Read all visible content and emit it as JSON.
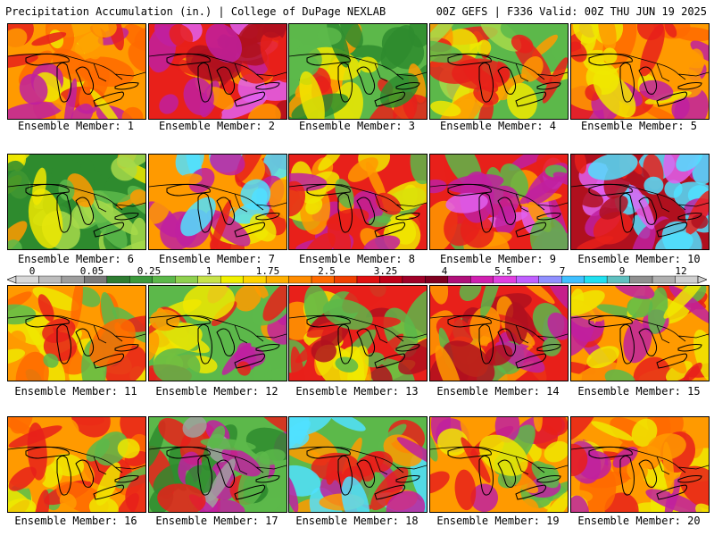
{
  "header": {
    "left_title": "Precipitation Accumulation (in.) | College of DuPage NEXLAB",
    "right_title": "00Z GEFS | F336 Valid: 00Z THU JUN 19 2025"
  },
  "member_label_prefix": "Ensemble Member: ",
  "members": [
    {
      "id": 1,
      "label": "Ensemble Member: 1"
    },
    {
      "id": 2,
      "label": "Ensemble Member: 2"
    },
    {
      "id": 3,
      "label": "Ensemble Member: 3"
    },
    {
      "id": 4,
      "label": "Ensemble Member: 4"
    },
    {
      "id": 5,
      "label": "Ensemble Member: 5"
    },
    {
      "id": 6,
      "label": "Ensemble Member: 6"
    },
    {
      "id": 7,
      "label": "Ensemble Member: 7"
    },
    {
      "id": 8,
      "label": "Ensemble Member: 8"
    },
    {
      "id": 9,
      "label": "Ensemble Member: 9"
    },
    {
      "id": 10,
      "label": "Ensemble Member: 10"
    },
    {
      "id": 11,
      "label": "Ensemble Member: 11"
    },
    {
      "id": 12,
      "label": "Ensemble Member: 12"
    },
    {
      "id": 13,
      "label": "Ensemble Member: 13"
    },
    {
      "id": 14,
      "label": "Ensemble Member: 14"
    },
    {
      "id": 15,
      "label": "Ensemble Member: 15"
    },
    {
      "id": 16,
      "label": "Ensemble Member: 16"
    },
    {
      "id": 17,
      "label": "Ensemble Member: 17"
    },
    {
      "id": 18,
      "label": "Ensemble Member: 18"
    },
    {
      "id": 19,
      "label": "Ensemble Member: 19"
    },
    {
      "id": 20,
      "label": "Ensemble Member: 20"
    }
  ],
  "colorbar": {
    "tick_labels": [
      "0",
      "0.05",
      "0.25",
      "1",
      "1.75",
      "2.5",
      "3.25",
      "4",
      "5.5",
      "7",
      "9",
      "12"
    ],
    "colors": [
      "#d9d9d9",
      "#bdbdbd",
      "#9e9e9e",
      "#7a7a7a",
      "#2e7d32",
      "#3c9a3c",
      "#5cb84a",
      "#8fd14f",
      "#c8e34a",
      "#f0f000",
      "#ffd400",
      "#ffb000",
      "#ff8c00",
      "#ff6a00",
      "#f04000",
      "#e01010",
      "#c00018",
      "#a00028",
      "#800020",
      "#b0107a",
      "#d020b0",
      "#e040e0",
      "#c060ff",
      "#9090ff",
      "#40c0ff",
      "#20e0f0",
      "#60c0c0",
      "#909090",
      "#b0b0b0",
      "#d0d0d0"
    ]
  },
  "map_palette": {
    "green_dark": "#2e8b2e",
    "green": "#5cb84a",
    "green_light": "#a6d94a",
    "yellow": "#f0e800",
    "orange": "#ff9a00",
    "orange_dark": "#ff6a00",
    "red": "#e8201a",
    "red_dark": "#b0101e",
    "magenta": "#c020a0",
    "violet": "#e060f0",
    "cyan": "#50e0ff",
    "gray": "#a0a0a0"
  }
}
